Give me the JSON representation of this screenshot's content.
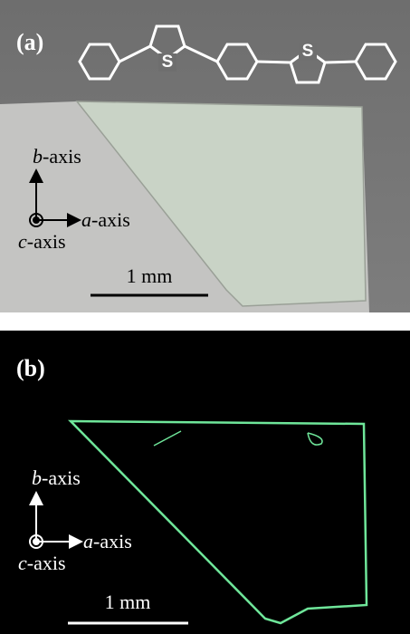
{
  "panels": [
    {
      "label": "(a)",
      "molecule": {
        "atoms": [
          "S",
          "S"
        ]
      },
      "axes": [
        {
          "letter": "b",
          "suffix": "-axis"
        },
        {
          "letter": "a",
          "suffix": "-axis"
        },
        {
          "letter": "c",
          "suffix": "-axis"
        }
      ],
      "scale_bar": "1 mm"
    },
    {
      "label": "(b)",
      "axes": [
        {
          "letter": "b",
          "suffix": "-axis"
        },
        {
          "letter": "a",
          "suffix": "-axis"
        },
        {
          "letter": "c",
          "suffix": "-axis"
        }
      ],
      "scale_bar": "1 mm"
    }
  ]
}
